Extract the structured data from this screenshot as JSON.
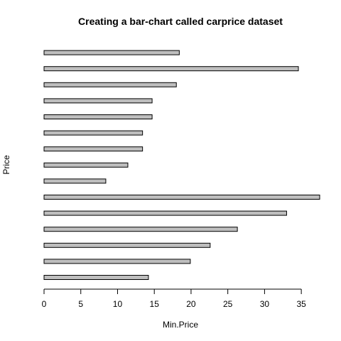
{
  "chart_data": {
    "type": "bar",
    "orientation": "horizontal",
    "title": "Creating a bar-chart called carprice dataset",
    "xlabel": "Min.Price",
    "ylabel": "Price",
    "xlim": [
      0,
      37.5
    ],
    "x_ticks": [
      0,
      5,
      10,
      15,
      20,
      25,
      30,
      35
    ],
    "values": [
      14.2,
      19.9,
      22.6,
      26.3,
      33.0,
      37.5,
      8.4,
      11.4,
      13.4,
      13.4,
      14.7,
      14.7,
      18.0,
      34.6,
      18.4
    ],
    "bar_color": "#bebebe",
    "grid": false,
    "legend": "none"
  }
}
